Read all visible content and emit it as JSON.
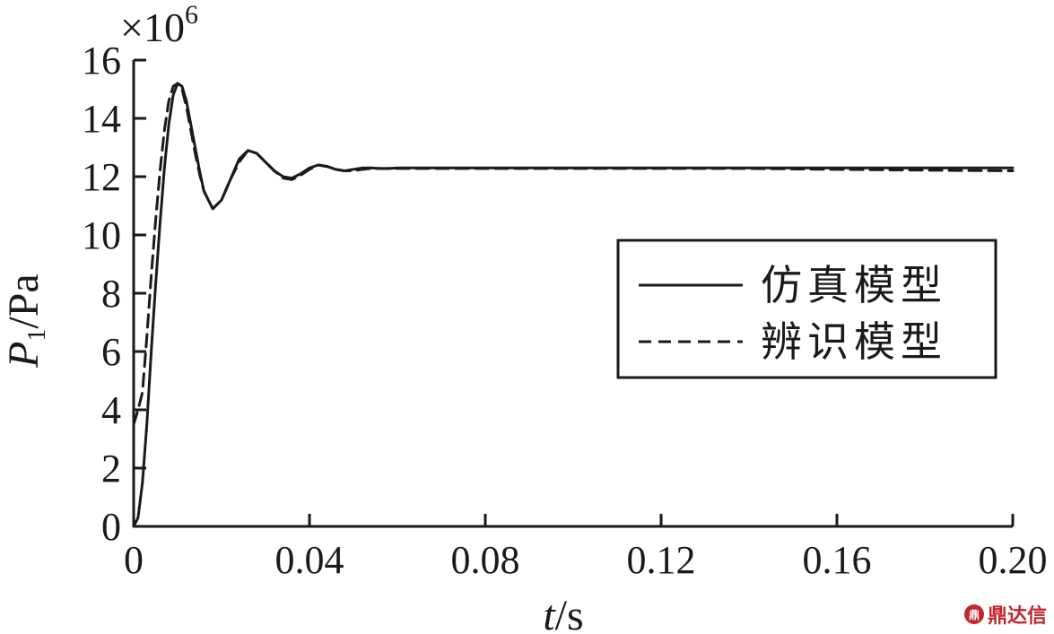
{
  "chart_data": {
    "type": "line",
    "xlabel_italic": "t",
    "xlabel_unit": "/s",
    "ylabel_italic": "P",
    "ylabel_sub": "1",
    "ylabel_unit": "/Pa",
    "y_multiplier_base": "×10",
    "y_multiplier_exp": "6",
    "xlim": [
      0,
      0.2
    ],
    "ylim": [
      0,
      16
    ],
    "x_ticks": [
      "0",
      "0.04",
      "0.08",
      "0.12",
      "0.16",
      "0.20"
    ],
    "x_tick_values": [
      0,
      0.04,
      0.08,
      0.12,
      0.16,
      0.2
    ],
    "y_ticks": [
      "0",
      "2",
      "4",
      "6",
      "8",
      "10",
      "12",
      "14",
      "16"
    ],
    "y_tick_values": [
      0,
      2,
      4,
      6,
      8,
      10,
      12,
      14,
      16
    ],
    "legend_position": "center-right",
    "series": [
      {
        "name": "仿真模型",
        "style": "solid",
        "x": [
          0,
          0.001,
          0.002,
          0.003,
          0.004,
          0.005,
          0.006,
          0.007,
          0.008,
          0.009,
          0.01,
          0.011,
          0.012,
          0.013,
          0.014,
          0.015,
          0.016,
          0.018,
          0.02,
          0.022,
          0.024,
          0.026,
          0.028,
          0.03,
          0.032,
          0.034,
          0.036,
          0.038,
          0.04,
          0.042,
          0.044,
          0.046,
          0.048,
          0.05,
          0.052,
          0.054,
          0.056,
          0.058,
          0.06,
          0.064,
          0.07,
          0.08,
          0.1,
          0.12,
          0.14,
          0.16,
          0.18,
          0.2
        ],
        "y": [
          0,
          0.3,
          1.5,
          3.5,
          6.0,
          8.3,
          10.4,
          12.3,
          13.8,
          14.8,
          15.2,
          15.1,
          14.6,
          13.8,
          13.0,
          12.2,
          11.5,
          10.9,
          11.2,
          11.9,
          12.6,
          12.9,
          12.8,
          12.5,
          12.2,
          12.0,
          11.95,
          12.1,
          12.3,
          12.4,
          12.35,
          12.25,
          12.2,
          12.25,
          12.3,
          12.3,
          12.28,
          12.28,
          12.3,
          12.3,
          12.3,
          12.3,
          12.3,
          12.3,
          12.3,
          12.3,
          12.3,
          12.3
        ]
      },
      {
        "name": "辨识模型",
        "style": "dashed",
        "x": [
          0,
          0.001,
          0.002,
          0.003,
          0.004,
          0.005,
          0.006,
          0.007,
          0.008,
          0.009,
          0.01,
          0.011,
          0.012,
          0.013,
          0.014,
          0.015,
          0.016,
          0.018,
          0.02,
          0.022,
          0.024,
          0.026,
          0.028,
          0.03,
          0.032,
          0.034,
          0.036,
          0.038,
          0.04,
          0.042,
          0.044,
          0.046,
          0.048,
          0.05,
          0.052,
          0.054,
          0.056,
          0.058,
          0.06,
          0.064,
          0.07,
          0.08,
          0.1,
          0.12,
          0.14,
          0.16,
          0.18,
          0.2
        ],
        "y": [
          3.5,
          4.0,
          4.6,
          6.5,
          8.6,
          10.5,
          12.2,
          13.6,
          14.6,
          15.1,
          15.2,
          15.0,
          14.4,
          13.6,
          12.8,
          12.1,
          11.5,
          10.9,
          11.2,
          11.9,
          12.5,
          12.9,
          12.8,
          12.5,
          12.2,
          11.95,
          11.9,
          12.05,
          12.25,
          12.4,
          12.35,
          12.25,
          12.2,
          12.2,
          12.25,
          12.28,
          12.28,
          12.28,
          12.28,
          12.28,
          12.28,
          12.28,
          12.28,
          12.28,
          12.28,
          12.25,
          12.22,
          12.2
        ]
      }
    ]
  },
  "watermark": {
    "badge": "鼎",
    "text": "鼎达信"
  }
}
